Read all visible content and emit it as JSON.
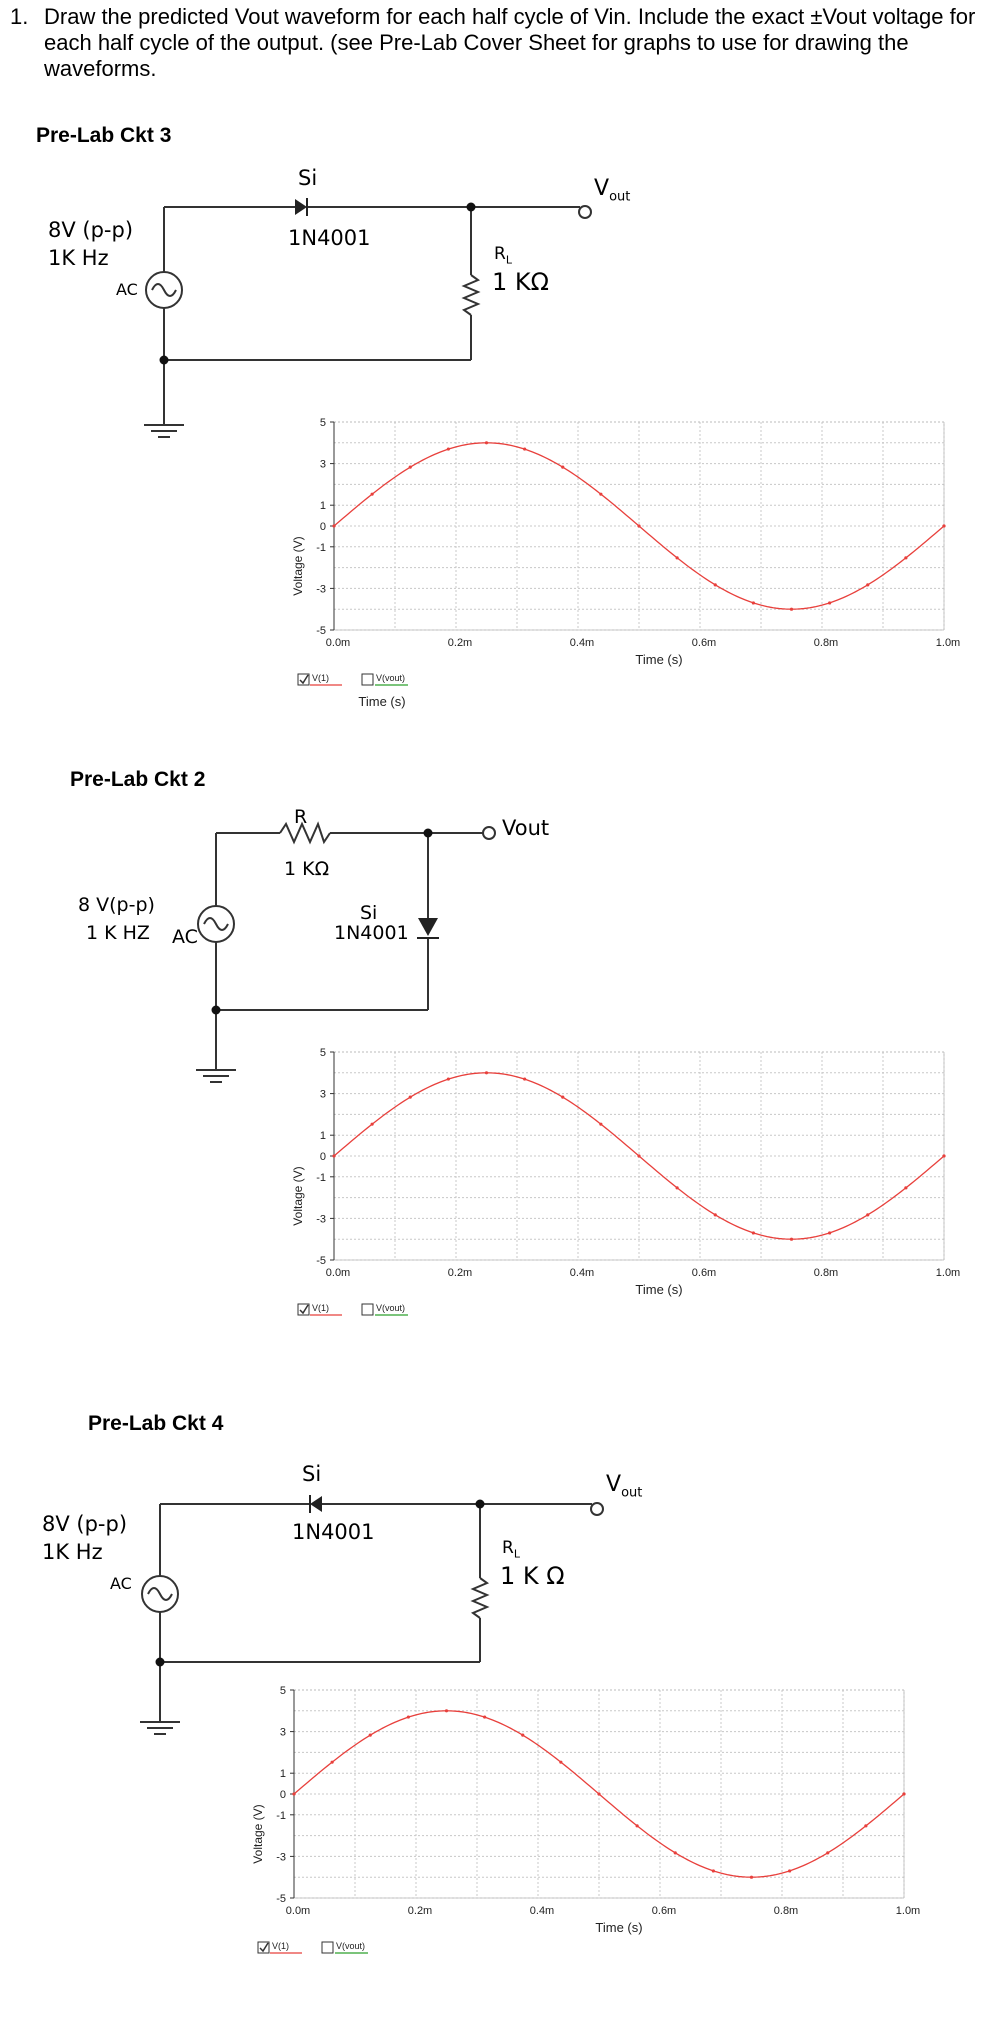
{
  "question": {
    "number": "1.",
    "text": "Draw the predicted Vout waveform for each half cycle of Vin.  Include the exact ±Vout voltage for each half cycle of the output. (see Pre-Lab Cover Sheet for graphs to use for drawing the waveforms."
  },
  "ckt3": {
    "title": "Pre-Lab Ckt 3",
    "source_voltage": "8V (p-p)",
    "source_freq": "1K Hz",
    "source_type": "AC",
    "diode_material": "Si",
    "diode_part": "1N4001",
    "load_label": "R",
    "load_sub": "L",
    "load_value": "1 KΩ",
    "out_label": "V",
    "out_sub": "out"
  },
  "ckt2": {
    "title": "Pre-Lab Ckt 2",
    "source_voltage": "8 V(p-p)",
    "source_freq": "1 K HZ",
    "source_type": "AC",
    "res_label": "R",
    "res_value": "1 KΩ",
    "diode_material": "Si",
    "diode_part": "1N4001",
    "out_label": "Vout"
  },
  "ckt4": {
    "title": "Pre-Lab Ckt 4",
    "source_voltage": "8V (p-p)",
    "source_freq": "1K Hz",
    "source_type": "AC",
    "diode_material": "Si",
    "diode_part": "1N4001",
    "load_label": "R",
    "load_sub": "L",
    "load_value": "1 K Ω",
    "out_label": "V",
    "out_sub": "out"
  },
  "chart_data": [
    {
      "type": "line",
      "xlabel": "Time (s)",
      "ylabel": "Voltage (V)",
      "ylim": [
        -5,
        5
      ],
      "xlim": [
        0,
        1.0
      ],
      "yticks": [
        "5",
        "3",
        "1",
        "0",
        "-1",
        "-3",
        "-5"
      ],
      "xticks": [
        "0.0m",
        "0.2m",
        "0.4m",
        "0.6m",
        "0.8m",
        "1.0m"
      ],
      "grid": true,
      "series": [
        {
          "name": "V(1)",
          "color": "#e8403c",
          "x": [
            0,
            0.0625,
            0.125,
            0.1875,
            0.25,
            0.3125,
            0.375,
            0.4375,
            0.5,
            0.5625,
            0.625,
            0.6875,
            0.75,
            0.8125,
            0.875,
            0.9375,
            1.0
          ],
          "y": [
            0,
            1.53,
            2.83,
            3.7,
            4.0,
            3.7,
            2.83,
            1.53,
            0,
            -1.53,
            -2.83,
            -3.7,
            -4.0,
            -3.7,
            -2.83,
            -1.53,
            0
          ]
        },
        {
          "name": "V(vout)",
          "color": "#2ca02c",
          "x": [],
          "y": []
        }
      ],
      "legend": "bottom-left",
      "legend_extra": "Time (s)"
    },
    {
      "type": "line",
      "xlabel": "Time (s)",
      "ylabel": "Voltage (V)",
      "ylim": [
        -5,
        5
      ],
      "xlim": [
        0,
        1.0
      ],
      "yticks": [
        "5",
        "3",
        "1",
        "0",
        "-1",
        "-3",
        "-5"
      ],
      "xticks": [
        "0.0m",
        "0.2m",
        "0.4m",
        "0.6m",
        "0.8m",
        "1.0m"
      ],
      "grid": true,
      "series": [
        {
          "name": "V(1)",
          "color": "#e8403c",
          "x": [
            0,
            0.0625,
            0.125,
            0.1875,
            0.25,
            0.3125,
            0.375,
            0.4375,
            0.5,
            0.5625,
            0.625,
            0.6875,
            0.75,
            0.8125,
            0.875,
            0.9375,
            1.0
          ],
          "y": [
            0,
            1.53,
            2.83,
            3.7,
            4.0,
            3.7,
            2.83,
            1.53,
            0,
            -1.53,
            -2.83,
            -3.7,
            -4.0,
            -3.7,
            -2.83,
            -1.53,
            0
          ]
        },
        {
          "name": "V(vout)",
          "color": "#2ca02c",
          "x": [],
          "y": []
        }
      ],
      "legend": "bottom-left"
    },
    {
      "type": "line",
      "xlabel": "Time (s)",
      "ylabel": "Voltage (V)",
      "ylim": [
        -5,
        5
      ],
      "xlim": [
        0,
        1.0
      ],
      "yticks": [
        "5",
        "3",
        "1",
        "0",
        "-1",
        "-3",
        "-5"
      ],
      "xticks": [
        "0.0m",
        "0.2m",
        "0.4m",
        "0.6m",
        "0.8m",
        "1.0m"
      ],
      "grid": true,
      "series": [
        {
          "name": "V(1)",
          "color": "#e8403c",
          "x": [
            0,
            0.0625,
            0.125,
            0.1875,
            0.25,
            0.3125,
            0.375,
            0.4375,
            0.5,
            0.5625,
            0.625,
            0.6875,
            0.75,
            0.8125,
            0.875,
            0.9375,
            1.0
          ],
          "y": [
            0,
            1.53,
            2.83,
            3.7,
            4.0,
            3.7,
            2.83,
            1.53,
            0,
            -1.53,
            -2.83,
            -3.7,
            -4.0,
            -3.7,
            -2.83,
            -1.53,
            0
          ]
        },
        {
          "name": "V(vout)",
          "color": "#2ca02c",
          "x": [],
          "y": []
        }
      ],
      "legend": "bottom-left"
    }
  ]
}
